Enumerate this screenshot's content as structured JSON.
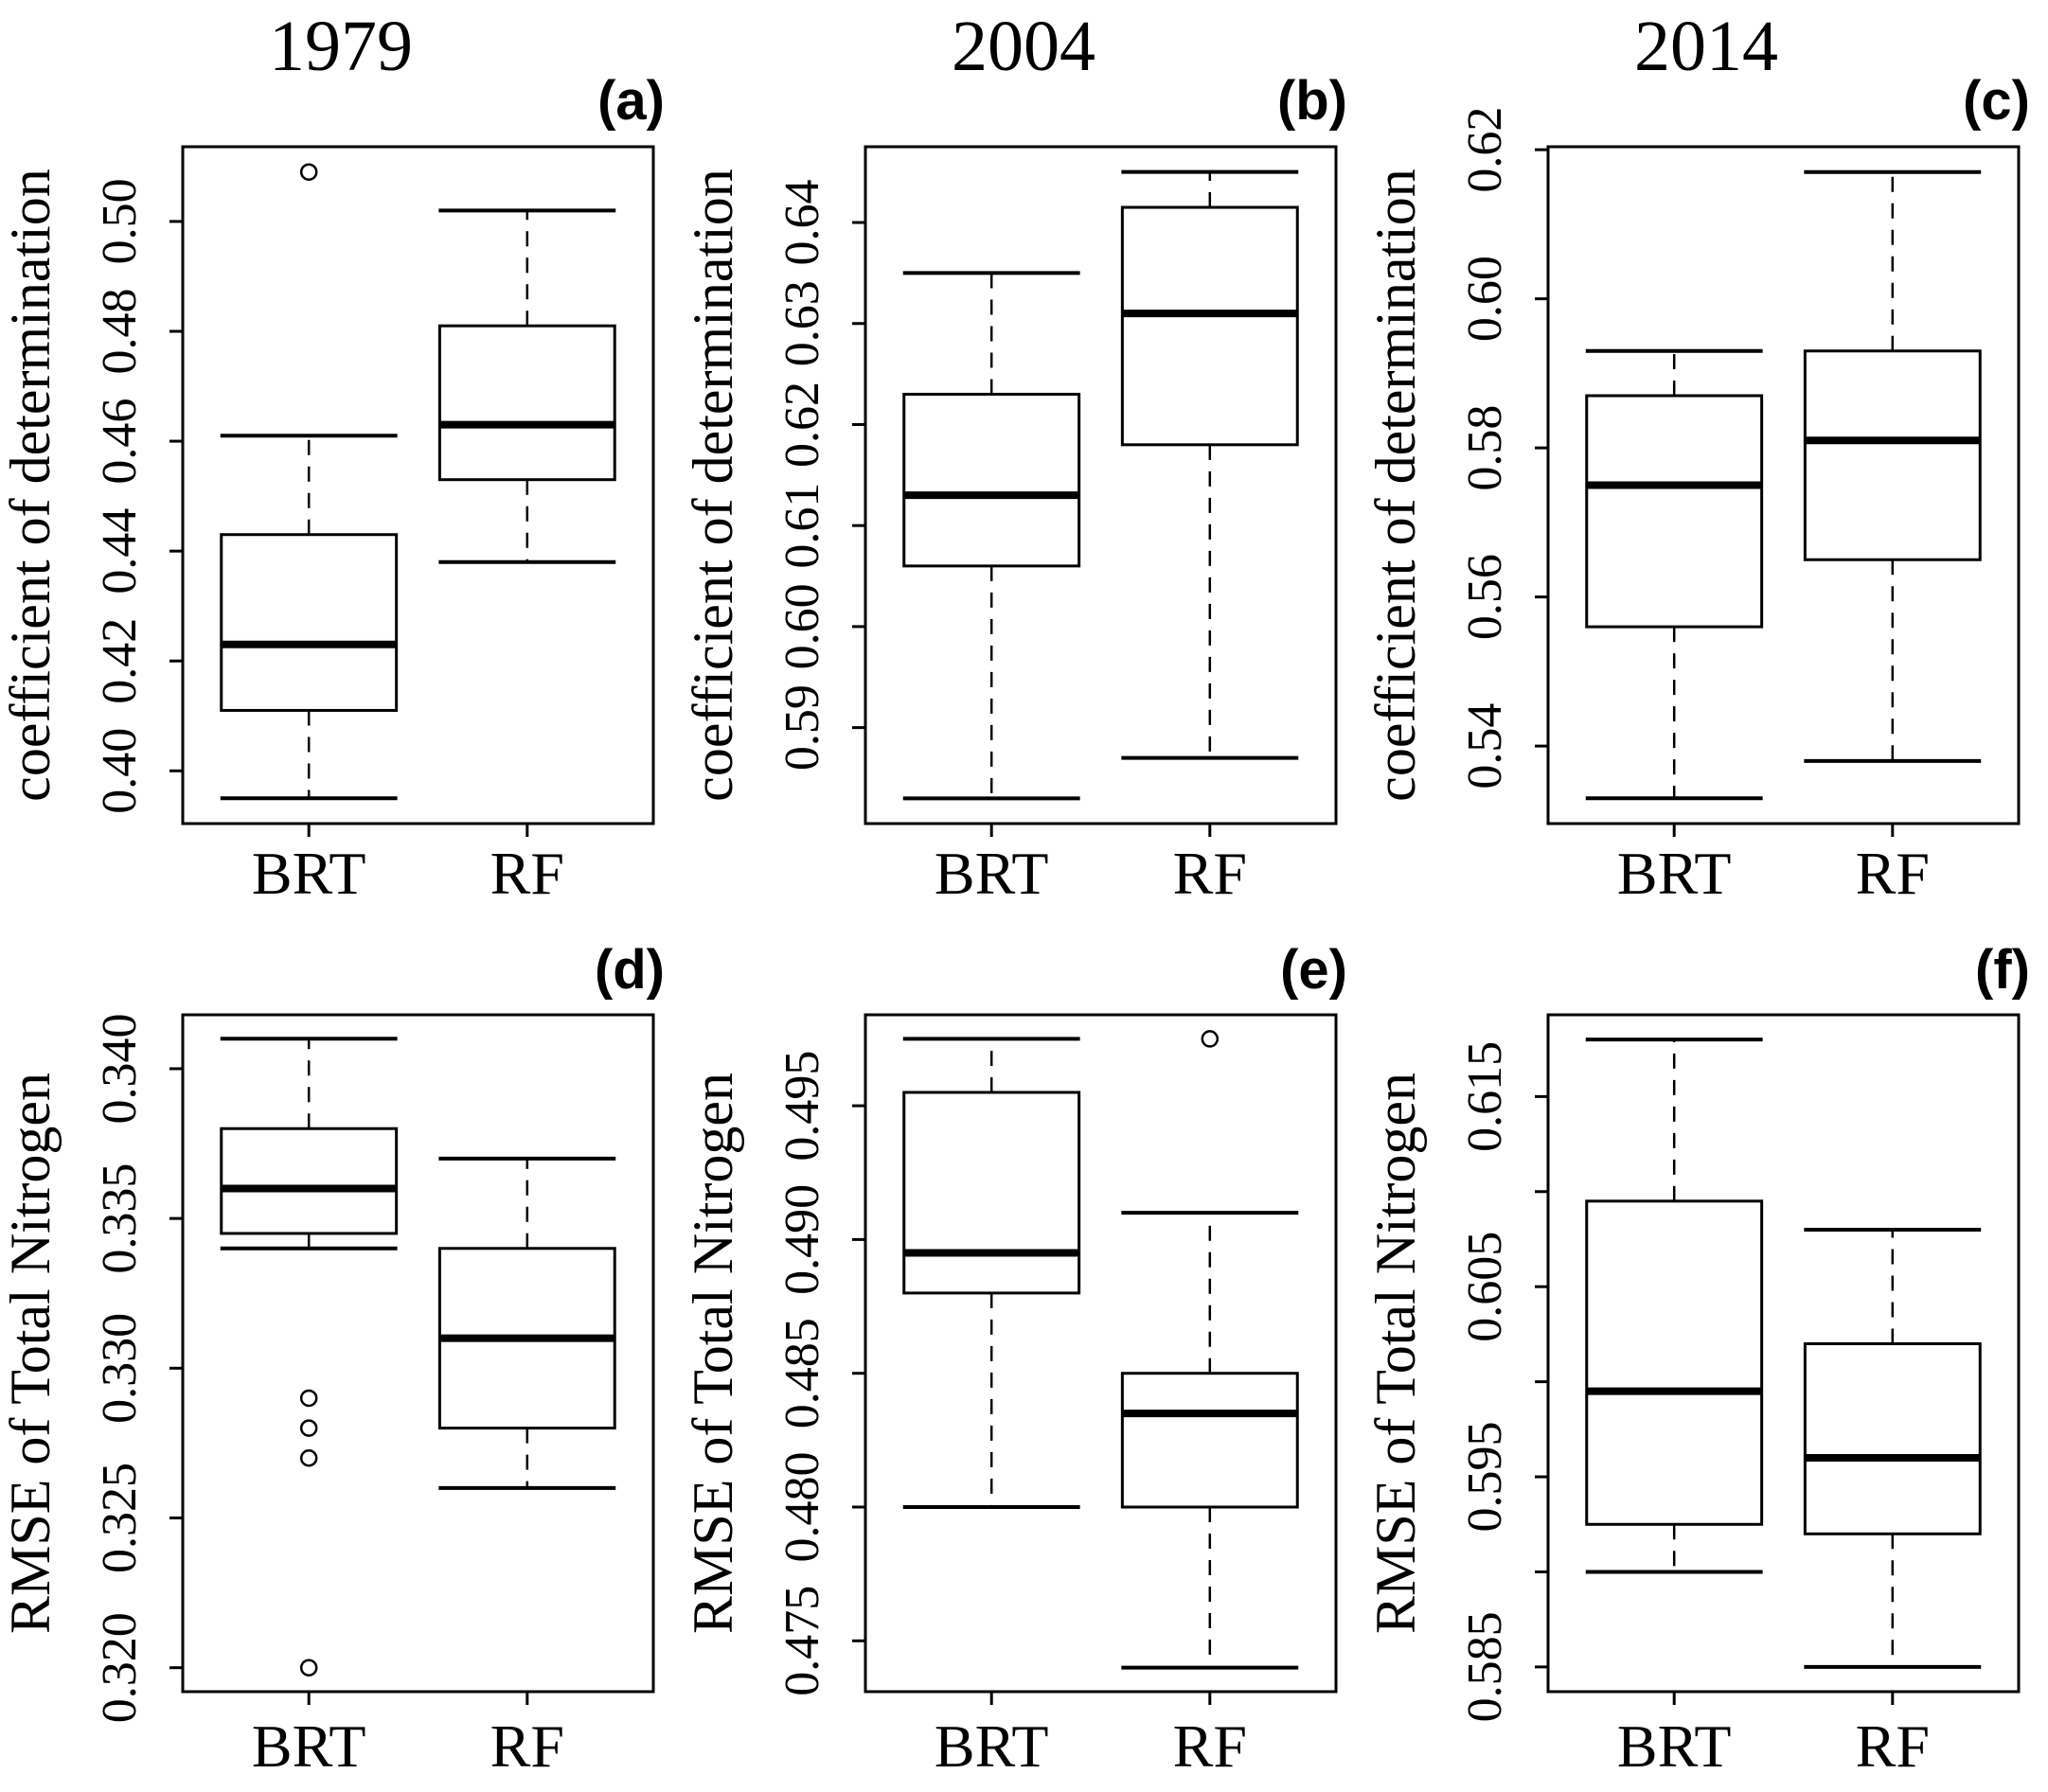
{
  "figure": {
    "background": "#ffffff",
    "stroke_color": "#000000",
    "column_titles": [
      "1979",
      "2004",
      "2014"
    ],
    "x_categories": [
      "BRT",
      "RF"
    ],
    "row_ylabels": [
      "coefficient of determination",
      "RMSE of Total Nitrogen"
    ]
  },
  "chart_data": [
    {
      "type": "boxplot",
      "panel_label": "(a)",
      "title": "1979",
      "ylabel": "coefficient of determination",
      "categories": [
        "BRT",
        "RF"
      ],
      "yticks": [
        0.4,
        0.42,
        0.44,
        0.46,
        0.48,
        0.5
      ],
      "ytick_labels": [
        "0.40",
        "0.42",
        "0.44",
        "0.46",
        "0.48",
        "0.50"
      ],
      "ylim": [
        0.3904,
        0.5136
      ],
      "series": [
        {
          "name": "BRT",
          "whisker_low": 0.395,
          "q1": 0.411,
          "median": 0.423,
          "q3": 0.443,
          "whisker_high": 0.461,
          "outliers": [
            0.509
          ]
        },
        {
          "name": "RF",
          "whisker_low": 0.438,
          "q1": 0.453,
          "median": 0.463,
          "q3": 0.481,
          "whisker_high": 0.502,
          "outliers": []
        }
      ]
    },
    {
      "type": "boxplot",
      "panel_label": "(b)",
      "title": "2004",
      "ylabel": "coefficient of determination",
      "categories": [
        "BRT",
        "RF"
      ],
      "yticks": [
        0.59,
        0.6,
        0.61,
        0.62,
        0.63,
        0.64
      ],
      "ytick_labels": [
        "0.59",
        "0.60",
        "0.61",
        "0.62",
        "0.63",
        "0.64"
      ],
      "ylim": [
        0.5805,
        0.6475
      ],
      "series": [
        {
          "name": "BRT",
          "whisker_low": 0.583,
          "q1": 0.606,
          "median": 0.613,
          "q3": 0.623,
          "whisker_high": 0.635,
          "outliers": []
        },
        {
          "name": "RF",
          "whisker_low": 0.587,
          "q1": 0.618,
          "median": 0.631,
          "q3": 0.6415,
          "whisker_high": 0.645,
          "outliers": []
        }
      ]
    },
    {
      "type": "boxplot",
      "panel_label": "(c)",
      "title": "2014",
      "ylabel": "coefficient of determination",
      "categories": [
        "BRT",
        "RF"
      ],
      "yticks": [
        0.54,
        0.56,
        0.58,
        0.6,
        0.62
      ],
      "ytick_labels": [
        "0.54",
        "0.56",
        "0.58",
        "0.60",
        "0.62"
      ],
      "ylim": [
        0.5296,
        0.6204
      ],
      "series": [
        {
          "name": "BRT",
          "whisker_low": 0.533,
          "q1": 0.556,
          "median": 0.575,
          "q3": 0.587,
          "whisker_high": 0.593,
          "outliers": []
        },
        {
          "name": "RF",
          "whisker_low": 0.538,
          "q1": 0.565,
          "median": 0.581,
          "q3": 0.593,
          "whisker_high": 0.617,
          "outliers": []
        }
      ]
    },
    {
      "type": "boxplot",
      "panel_label": "(d)",
      "title": "",
      "ylabel": "RMSE of Total Nitrogen",
      "categories": [
        "BRT",
        "RF"
      ],
      "yticks": [
        0.32,
        0.325,
        0.33,
        0.335,
        0.34
      ],
      "ytick_labels": [
        "0.320",
        "0.325",
        "0.330",
        "0.335",
        "0.340"
      ],
      "ylim": [
        0.3192,
        0.3418
      ],
      "series": [
        {
          "name": "BRT",
          "whisker_low": 0.334,
          "q1": 0.3345,
          "median": 0.336,
          "q3": 0.338,
          "whisker_high": 0.341,
          "outliers": [
            0.329,
            0.328,
            0.327,
            0.32
          ]
        },
        {
          "name": "RF",
          "whisker_low": 0.326,
          "q1": 0.328,
          "median": 0.331,
          "q3": 0.334,
          "whisker_high": 0.337,
          "outliers": []
        }
      ]
    },
    {
      "type": "boxplot",
      "panel_label": "(e)",
      "title": "",
      "ylabel": "RMSE of Total Nitrogen",
      "categories": [
        "BRT",
        "RF"
      ],
      "yticks": [
        0.475,
        0.48,
        0.485,
        0.49,
        0.495
      ],
      "ytick_labels": [
        "0.475",
        "0.480",
        "0.485",
        "0.490",
        "0.495"
      ],
      "ylim": [
        0.4731,
        0.4984
      ],
      "series": [
        {
          "name": "BRT",
          "whisker_low": 0.48,
          "q1": 0.488,
          "median": 0.4895,
          "q3": 0.4955,
          "whisker_high": 0.4975,
          "outliers": []
        },
        {
          "name": "RF",
          "whisker_low": 0.474,
          "q1": 0.48,
          "median": 0.4835,
          "q3": 0.485,
          "whisker_high": 0.491,
          "outliers": [
            0.4975
          ]
        }
      ]
    },
    {
      "type": "boxplot",
      "panel_label": "(f)",
      "title": "",
      "ylabel": "RMSE of Total Nitrogen",
      "categories": [
        "BRT",
        "RF"
      ],
      "yticks": [
        0.585,
        0.59,
        0.595,
        0.6,
        0.605,
        0.61,
        0.615
      ],
      "ytick_labels": [
        "0.585",
        "",
        "0.595",
        "",
        "0.605",
        "",
        "0.615"
      ],
      "ylim": [
        0.5837,
        0.6193
      ],
      "series": [
        {
          "name": "BRT",
          "whisker_low": 0.59,
          "q1": 0.5925,
          "median": 0.5995,
          "q3": 0.6095,
          "whisker_high": 0.618,
          "outliers": []
        },
        {
          "name": "RF",
          "whisker_low": 0.585,
          "q1": 0.592,
          "median": 0.596,
          "q3": 0.602,
          "whisker_high": 0.608,
          "outliers": []
        }
      ]
    }
  ]
}
